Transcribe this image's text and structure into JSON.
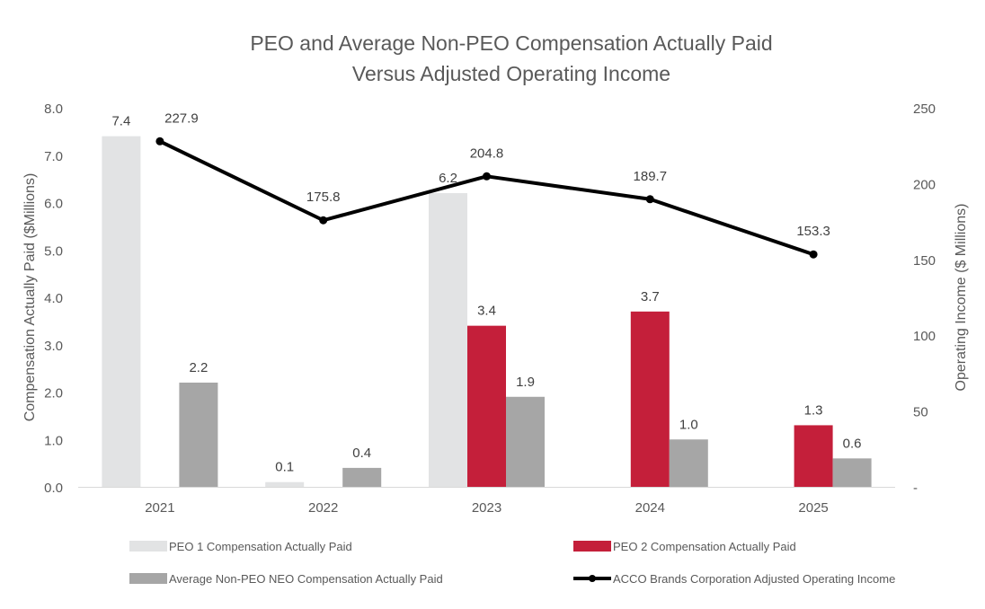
{
  "chart_data": {
    "type": "bar",
    "title_line1": "PEO and Average Non-PEO Compensation Actually Paid",
    "title_line2": "Versus Adjusted Operating Income",
    "ylabel": "Compensation Actually Paid ($Millions)",
    "y2label": "Operating Income ($ Millions)",
    "categories": [
      "2021",
      "2022",
      "2023",
      "2024",
      "2025"
    ],
    "ylim": [
      0,
      8
    ],
    "y_ticks": [
      "0.0",
      "1.0",
      "2.0",
      "3.0",
      "4.0",
      "5.0",
      "6.0",
      "7.0",
      "8.0"
    ],
    "y2lim": [
      0,
      250
    ],
    "y2_ticks": [
      "-",
      "50",
      "100",
      "150",
      "200",
      "250"
    ],
    "series": [
      {
        "name": "PEO 1 Compensation Actually Paid",
        "kind": "bar",
        "color": "#e2e3e4",
        "values": [
          7.4,
          0.1,
          6.2,
          null,
          null
        ],
        "labels": [
          "7.4",
          "0.1",
          "6.2",
          "",
          ""
        ]
      },
      {
        "name": "PEO 2 Compensation Actually Paid",
        "kind": "bar",
        "color": "#c41f3a",
        "values": [
          null,
          null,
          3.4,
          3.7,
          1.3
        ],
        "labels": [
          "",
          "",
          "3.4",
          "3.7",
          "1.3"
        ]
      },
      {
        "name": "Average Non-PEO NEO Compensation Actually Paid",
        "kind": "bar",
        "color": "#a6a6a6",
        "values": [
          2.2,
          0.4,
          1.9,
          1.0,
          0.6
        ],
        "labels": [
          "2.2",
          "0.4",
          "1.9",
          "1.0",
          "0.6"
        ]
      },
      {
        "name": "ACCO Brands Corporation Adjusted Operating Income",
        "kind": "line",
        "axis": "right",
        "color": "#000000",
        "values": [
          227.9,
          175.8,
          204.8,
          189.7,
          153.3
        ],
        "labels": [
          "227.9",
          "175.8",
          "204.8",
          "189.7",
          "153.3"
        ]
      }
    ],
    "legend_position": "bottom",
    "grid": false
  }
}
